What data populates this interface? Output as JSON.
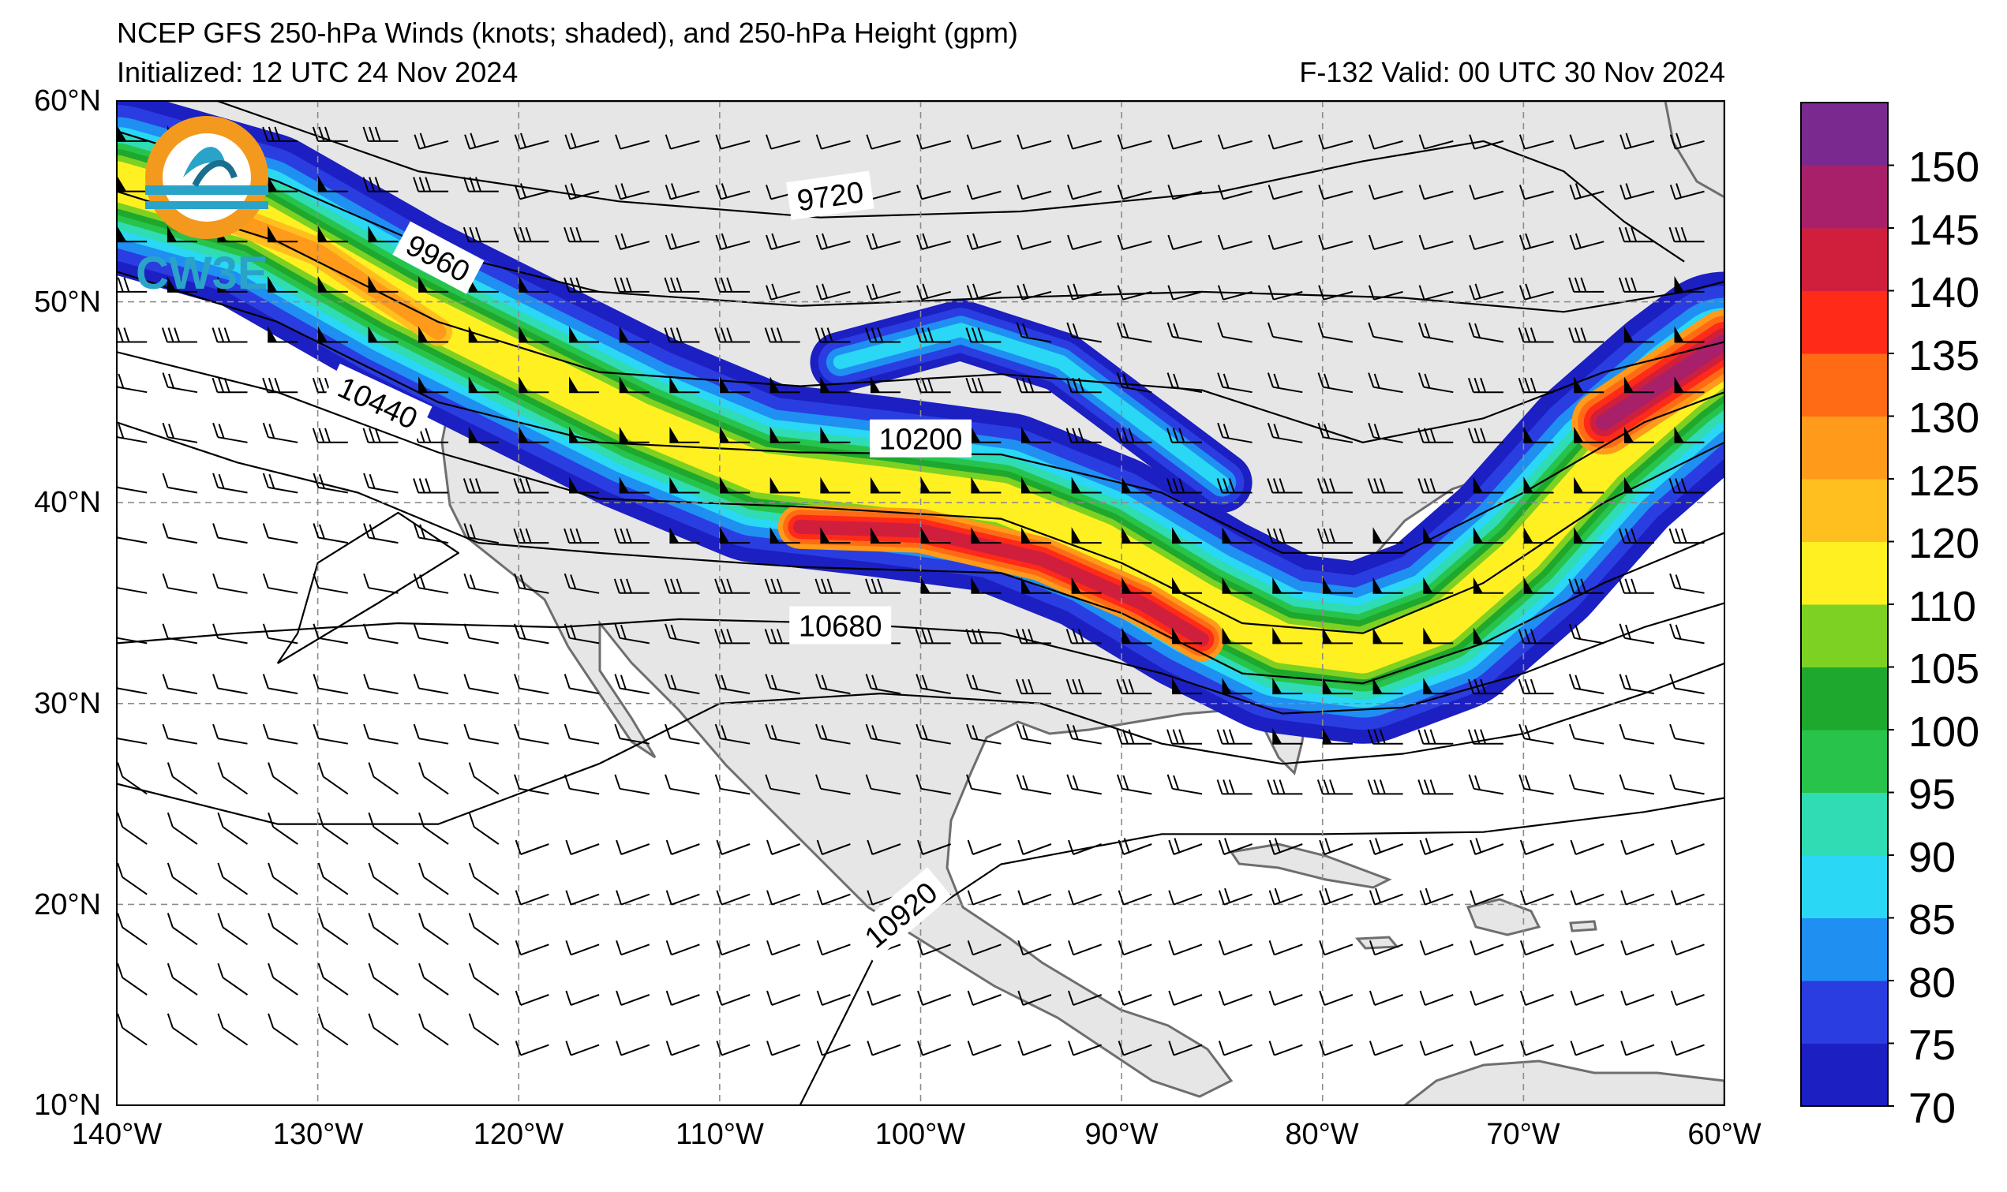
{
  "header": {
    "title": "NCEP GFS 250-hPa Winds (knots; shaded), and 250-hPa Height (gpm)",
    "initialized": "Initialized: 12 UTC 24 Nov 2024",
    "valid": "F-132  Valid: 00 UTC 30 Nov 2024"
  },
  "logo": {
    "text": "CW3E"
  },
  "map": {
    "lat_labels": [
      "60°N",
      "50°N",
      "40°N",
      "30°N",
      "20°N",
      "10°N"
    ],
    "lon_labels": [
      "140°W",
      "130°W",
      "120°W",
      "110°W",
      "100°W",
      "90°W",
      "80°W",
      "70°W",
      "60°W"
    ],
    "lat_range": [
      10,
      60
    ],
    "lon_range": [
      -140,
      -60
    ],
    "land_color": "#e6e6e6",
    "ocean_color": "#ffffff",
    "contour_color": "#000000",
    "height_contour_labels": [
      {
        "text": "9720"
      },
      {
        "text": "9960"
      },
      {
        "text": "10200"
      },
      {
        "text": "10440"
      },
      {
        "text": "10680"
      },
      {
        "text": "10920"
      }
    ]
  },
  "colorbar": {
    "levels": [
      70,
      75,
      80,
      85,
      90,
      95,
      100,
      105,
      110,
      120,
      125,
      130,
      135,
      140,
      145,
      150
    ],
    "colors": [
      "#1c1fc2",
      "#2a3de0",
      "#1f8ff2",
      "#2ad7f5",
      "#2fdcb3",
      "#27c34a",
      "#1ea82d",
      "#7dd122",
      "#fff021",
      "#ffc01f",
      "#ff9a1a",
      "#ff6b14",
      "#ff2a18",
      "#d01f3c",
      "#a8206a",
      "#7a2a8f"
    ],
    "tick_labels": [
      "70",
      "75",
      "80",
      "85",
      "90",
      "95",
      "100",
      "105",
      "110",
      "120",
      "125",
      "130",
      "135",
      "140",
      "145",
      "150"
    ]
  }
}
